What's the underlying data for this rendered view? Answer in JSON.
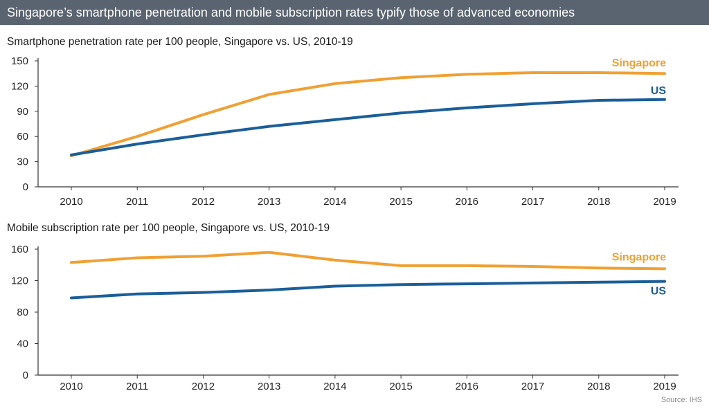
{
  "header": {
    "title": "Singapore’s smartphone penetration and mobile subscription rates typify those of advanced economies"
  },
  "source": "Source: IHS",
  "colors": {
    "singapore": "#f0a033",
    "us": "#1b5e99",
    "axis": "#333333",
    "banner": "#5a6470"
  },
  "chart_data": [
    {
      "type": "line",
      "title": "Smartphone penetration rate per 100 people, Singapore vs. US, 2010-19",
      "x": [
        "2010",
        "2011",
        "2012",
        "2013",
        "2014",
        "2015",
        "2016",
        "2017",
        "2018",
        "2019"
      ],
      "yticks": [
        "0",
        "30",
        "60",
        "90",
        "120",
        "150"
      ],
      "ylim": [
        0,
        150
      ],
      "grid": false,
      "series": [
        {
          "name": "Singapore",
          "color": "#f0a033",
          "values": [
            37,
            60,
            86,
            110,
            123,
            130,
            134,
            136,
            136,
            135
          ]
        },
        {
          "name": "US",
          "color": "#1b5e99",
          "values": [
            38,
            51,
            62,
            72,
            80,
            88,
            94,
            99,
            103,
            104
          ]
        }
      ]
    },
    {
      "type": "line",
      "title": "Mobile subscription rate per 100 people, Singapore vs. US, 2010-19",
      "x": [
        "2010",
        "2011",
        "2012",
        "2013",
        "2014",
        "2015",
        "2016",
        "2017",
        "2018",
        "2019"
      ],
      "yticks": [
        "0",
        "40",
        "80",
        "120",
        "160"
      ],
      "ylim": [
        0,
        160
      ],
      "grid": false,
      "series": [
        {
          "name": "Singapore",
          "color": "#f0a033",
          "values": [
            143,
            149,
            151,
            156,
            146,
            139,
            139,
            138,
            136,
            135
          ]
        },
        {
          "name": "US",
          "color": "#1b5e99",
          "values": [
            98,
            103,
            105,
            108,
            113,
            115,
            116,
            117,
            118,
            119
          ]
        }
      ]
    }
  ]
}
